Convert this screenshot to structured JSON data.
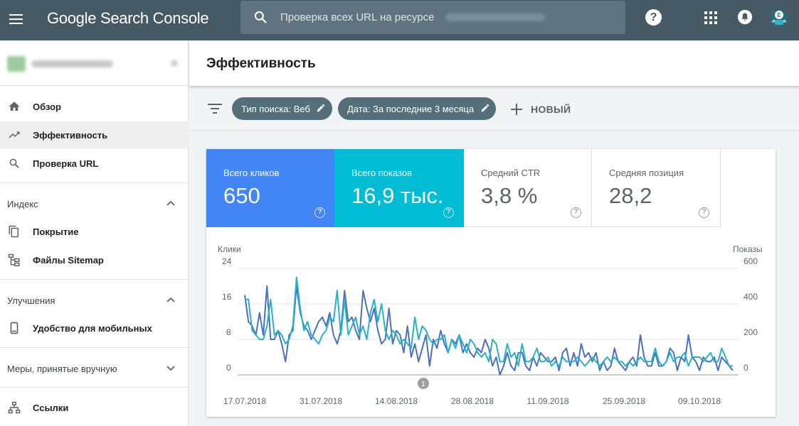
{
  "header": {
    "logo": "Google Search Console",
    "search_placeholder": "Проверка всех URL на ресурсе",
    "help_label": "?"
  },
  "sidebar": {
    "nav": [
      {
        "label": "Обзор",
        "icon": "home-icon"
      },
      {
        "label": "Эффективность",
        "icon": "trending-up-icon",
        "active": true
      },
      {
        "label": "Проверка URL",
        "icon": "search-icon"
      }
    ],
    "sections": [
      {
        "title": "Индекс",
        "expanded": true,
        "items": [
          {
            "label": "Покрытие",
            "icon": "copy-icon"
          },
          {
            "label": "Файлы Sitemap",
            "icon": "sitemap-icon"
          }
        ]
      },
      {
        "title": "Улучшения",
        "expanded": true,
        "items": [
          {
            "label": "Удобство для мобильных",
            "icon": "smartphone-icon"
          }
        ]
      },
      {
        "title": "Меры, принятые вручную",
        "expanded": false,
        "items": []
      },
      {
        "title": "",
        "items": [
          {
            "label": "Ссылки",
            "icon": "links-icon"
          }
        ]
      }
    ]
  },
  "main": {
    "title": "Эффективность",
    "filters": {
      "chip_search_type": "Тип поиска: Веб",
      "chip_date": "Дата: За последние 3 месяца",
      "new_label": "НОВЫЙ"
    },
    "metrics": [
      {
        "label": "Всего кликов",
        "value": "650",
        "color": "#4285f4"
      },
      {
        "label": "Всего показов",
        "value": "16,9 тыс.",
        "color": "#00bcd4"
      },
      {
        "label": "Средний CTR",
        "value": "3,8 %"
      },
      {
        "label": "Средняя позиция",
        "value": "28,2"
      }
    ]
  },
  "chart_data": {
    "type": "line",
    "left_axis": {
      "title": "Клики",
      "ticks": [
        "24",
        "16",
        "8",
        "0"
      ],
      "range": [
        0,
        24
      ]
    },
    "right_axis": {
      "title": "Показы",
      "ticks": [
        "600",
        "400",
        "200",
        "0"
      ],
      "range": [
        0,
        600
      ]
    },
    "x_labels": [
      "17.07.2018",
      "31.07.2018",
      "14.08.2018",
      "28.08.2018",
      "11.09.2018",
      "25.09.2018",
      "09.10.2018"
    ],
    "annotation": "1",
    "series": [
      {
        "color": "#4a6fc4",
        "axis": "left",
        "values": [
          18,
          12,
          11,
          9,
          14,
          9,
          20,
          8,
          8,
          10,
          7,
          3,
          9,
          10,
          20,
          14,
          11,
          10,
          8,
          10,
          12,
          13,
          11,
          14,
          9,
          7,
          10,
          19,
          12,
          13,
          10,
          8,
          19,
          15,
          12,
          15,
          10,
          7,
          8,
          15,
          7,
          10,
          9,
          5,
          11,
          4,
          7,
          3,
          6,
          9,
          2,
          8,
          6,
          10,
          7,
          5,
          8,
          7,
          9,
          5,
          7,
          5,
          4,
          6,
          5,
          8,
          6,
          2,
          4,
          0,
          2,
          5,
          2,
          1,
          5,
          5,
          2,
          1,
          4,
          2,
          5,
          4,
          3,
          3,
          4,
          1,
          5,
          6,
          2,
          5,
          2,
          7,
          4,
          5,
          3,
          5,
          1,
          3,
          1,
          2,
          6,
          3,
          2,
          1,
          3,
          4,
          2,
          9,
          4,
          2,
          2,
          5,
          2,
          2,
          3,
          6,
          5,
          1,
          4,
          3,
          9,
          4,
          3,
          1,
          4,
          3,
          3,
          4,
          1,
          4,
          3,
          2,
          1
        ]
      },
      {
        "color": "#26b3c5",
        "axis": "left",
        "values": [
          17,
          17,
          10,
          9,
          8,
          8,
          11,
          17,
          9,
          10,
          9,
          7,
          8,
          11,
          22,
          15,
          10,
          12,
          9,
          8,
          7,
          9,
          10,
          13,
          12,
          19,
          9,
          17,
          9,
          11,
          13,
          9,
          11,
          8,
          14,
          17,
          12,
          16,
          10,
          8,
          10,
          9,
          7,
          8,
          7,
          6,
          13,
          8,
          11,
          10,
          8,
          7,
          8,
          8,
          9,
          5,
          8,
          6,
          9,
          7,
          5,
          8,
          7,
          5,
          4,
          5,
          3,
          8,
          7,
          3,
          3,
          7,
          4,
          5,
          2,
          7,
          3,
          3,
          4,
          6,
          3,
          3,
          4,
          2,
          3,
          2,
          4,
          3,
          3,
          3,
          4,
          3,
          2,
          3,
          4,
          3,
          2,
          3,
          4,
          3,
          4,
          3,
          3,
          2,
          3,
          2,
          3,
          4,
          3,
          3,
          3,
          6,
          3,
          2,
          3,
          5,
          3,
          4,
          4,
          5,
          2,
          4,
          4,
          4,
          3,
          4,
          5,
          3,
          3,
          6,
          4,
          2,
          2
        ]
      }
    ]
  }
}
